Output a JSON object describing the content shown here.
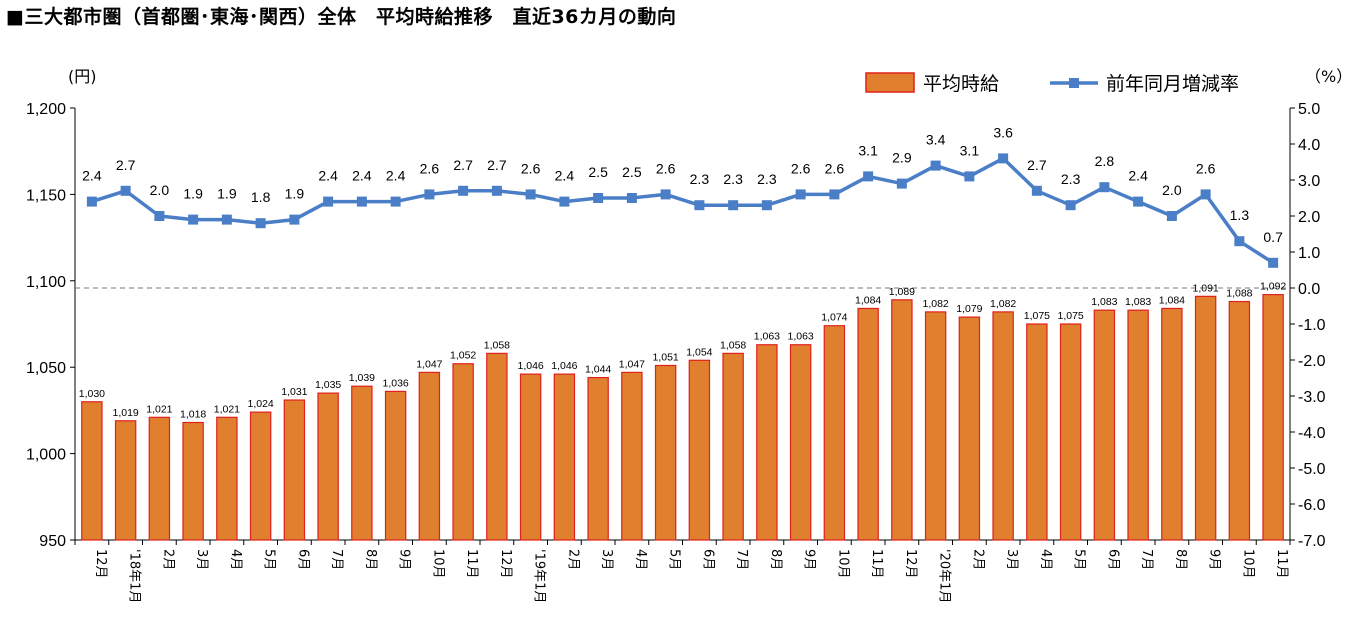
{
  "title": "■三大都市圏（首都圏･東海･関西）全体　平均時給推移　直近36カ月の動向",
  "chart_data": {
    "type": "bar+line",
    "categories": [
      "12月",
      "'18年1月",
      "2月",
      "3月",
      "4月",
      "5月",
      "6月",
      "7月",
      "8月",
      "9月",
      "10月",
      "11月",
      "12月",
      "'19年1月",
      "2月",
      "3月",
      "4月",
      "5月",
      "6月",
      "7月",
      "8月",
      "9月",
      "10月",
      "11月",
      "12月",
      "'20年1月",
      "2月",
      "3月",
      "4月",
      "5月",
      "6月",
      "7月",
      "8月",
      "9月",
      "10月",
      "11月"
    ],
    "bar_labels": [
      "1,030",
      "1,019",
      "1,021",
      "1,018",
      "1,021",
      "1,024",
      "1,031",
      "1,035",
      "1,039",
      "1,036",
      "1,047",
      "1,052",
      "1,058",
      "1,046",
      "1,046",
      "1,044",
      "1,047",
      "1,051",
      "1,054",
      "1,058",
      "1,063",
      "1,063",
      "1,074",
      "1,084",
      "1,089",
      "1,082",
      "1,079",
      "1,082",
      "1,075",
      "1,075",
      "1,083",
      "1,083",
      "1,084",
      "1,091",
      "1,088",
      "1,092"
    ],
    "line_labels": [
      "2.4",
      "2.7",
      "2.0",
      "1.9",
      "1.9",
      "1.8",
      "1.9",
      "2.4",
      "2.4",
      "2.4",
      "2.6",
      "2.7",
      "2.7",
      "2.6",
      "2.4",
      "2.5",
      "2.5",
      "2.6",
      "2.3",
      "2.3",
      "2.3",
      "2.6",
      "2.6",
      "3.1",
      "2.9",
      "3.4",
      "3.1",
      "3.6",
      "2.7",
      "2.3",
      "2.8",
      "2.4",
      "2.0",
      "2.6",
      "1.3",
      "0.7"
    ],
    "series": [
      {
        "name": "平均時給",
        "axis": "left",
        "color": "#E07F2E",
        "border_color": "#E0201C",
        "values": [
          1030,
          1019,
          1021,
          1018,
          1021,
          1024,
          1031,
          1035,
          1039,
          1036,
          1047,
          1052,
          1058,
          1046,
          1046,
          1044,
          1047,
          1051,
          1054,
          1058,
          1063,
          1063,
          1074,
          1084,
          1089,
          1082,
          1079,
          1082,
          1075,
          1075,
          1083,
          1083,
          1084,
          1091,
          1088,
          1092
        ]
      },
      {
        "name": "前年同月増減率",
        "axis": "right",
        "color": "#4A7EC7",
        "values": [
          2.4,
          2.7,
          2.0,
          1.9,
          1.9,
          1.8,
          1.9,
          2.4,
          2.4,
          2.4,
          2.6,
          2.7,
          2.7,
          2.6,
          2.4,
          2.5,
          2.5,
          2.6,
          2.3,
          2.3,
          2.3,
          2.6,
          2.6,
          3.1,
          2.9,
          3.4,
          3.1,
          3.6,
          2.7,
          2.3,
          2.8,
          2.4,
          2.0,
          2.6,
          1.3,
          0.7
        ]
      }
    ],
    "y_left": {
      "unit": "(円)",
      "lim": [
        950,
        1200
      ],
      "ticks": [
        "950",
        "1,000",
        "1,050",
        "1,100",
        "1,150",
        "1,200"
      ],
      "tick_values": [
        950,
        1000,
        1050,
        1100,
        1150,
        1200
      ]
    },
    "y_right": {
      "unit": "（%）",
      "lim": [
        -7.0,
        5.0
      ],
      "ticks": [
        "-7.0",
        "-6.0",
        "-5.0",
        "-4.0",
        "-3.0",
        "-2.0",
        "-1.0",
        "0.0",
        "1.0",
        "2.0",
        "3.0",
        "4.0",
        "5.0"
      ],
      "tick_values": [
        -7,
        -6,
        -5,
        -4,
        -3,
        -2,
        -1,
        0,
        1,
        2,
        3,
        4,
        5
      ]
    },
    "zero_reference": "dashed line at 0.0 %",
    "legend_position": "top-right",
    "grid": false
  }
}
